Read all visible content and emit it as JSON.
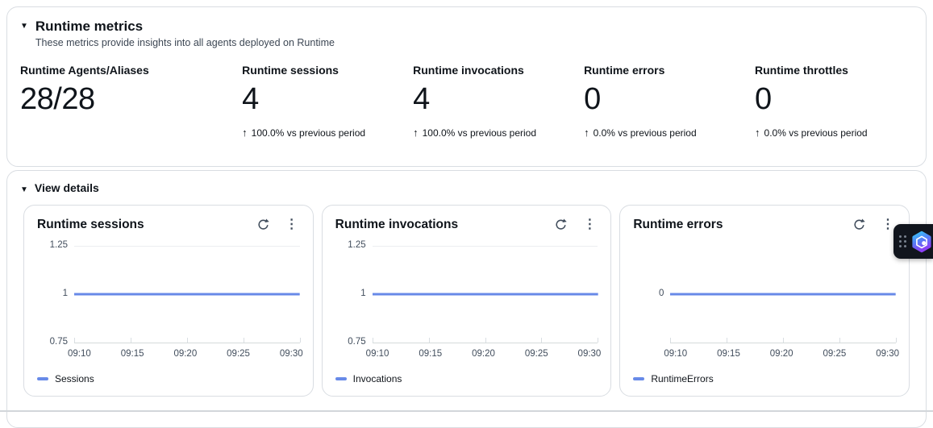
{
  "panel": {
    "title": "Runtime metrics",
    "subtitle": "These metrics provide insights into all agents deployed on Runtime"
  },
  "metrics": [
    {
      "label": "Runtime Agents/Aliases",
      "value": "28/28",
      "trend": ""
    },
    {
      "label": "Runtime sessions",
      "value": "4",
      "trend": "100.0% vs previous period"
    },
    {
      "label": "Runtime invocations",
      "value": "4",
      "trend": "100.0% vs previous period"
    },
    {
      "label": "Runtime errors",
      "value": "0",
      "trend": "0.0% vs previous period"
    },
    {
      "label": "Runtime throttles",
      "value": "0",
      "trend": "0.0% vs previous period"
    }
  ],
  "details": {
    "label": "View details"
  },
  "icons": {
    "collapse_caret": "▼",
    "trend_up_arrow": "↑",
    "menu_ellipsis": "⋮"
  },
  "colors": {
    "series_blue": "#688ae8",
    "grid": "#eceef0",
    "axis": "#d5dbdb",
    "text": "#0f141a",
    "muted_text": "#414d5c",
    "panel_border": "#d9dde2",
    "q_gradient_top": "#37c8f5",
    "q_gradient_bottom": "#8b3ff5"
  },
  "chart_data": [
    {
      "type": "line",
      "title": "Runtime sessions",
      "x": [
        "09:10",
        "09:15",
        "09:20",
        "09:25",
        "09:30"
      ],
      "series": [
        {
          "name": "Sessions",
          "values": [
            1,
            1,
            1,
            1,
            1
          ],
          "color": "#688ae8"
        }
      ],
      "ylim": [
        0.75,
        1.25
      ],
      "yticks": [
        "1.25",
        "1",
        "0.75"
      ],
      "grid": true,
      "legend_position": "bottom"
    },
    {
      "type": "line",
      "title": "Runtime invocations",
      "x": [
        "09:10",
        "09:15",
        "09:20",
        "09:25",
        "09:30"
      ],
      "series": [
        {
          "name": "Invocations",
          "values": [
            1,
            1,
            1,
            1,
            1
          ],
          "color": "#688ae8"
        }
      ],
      "ylim": [
        0.75,
        1.25
      ],
      "yticks": [
        "1.25",
        "1",
        "0.75"
      ],
      "grid": true,
      "legend_position": "bottom"
    },
    {
      "type": "line",
      "title": "Runtime errors",
      "x": [
        "09:10",
        "09:15",
        "09:20",
        "09:25",
        "09:30"
      ],
      "series": [
        {
          "name": "RuntimeErrors",
          "values": [
            0,
            0,
            0,
            0,
            0
          ],
          "color": "#688ae8"
        }
      ],
      "ylim": [
        -0.25,
        0.25
      ],
      "yticks": [
        "0"
      ],
      "grid": true,
      "legend_position": "bottom"
    }
  ]
}
